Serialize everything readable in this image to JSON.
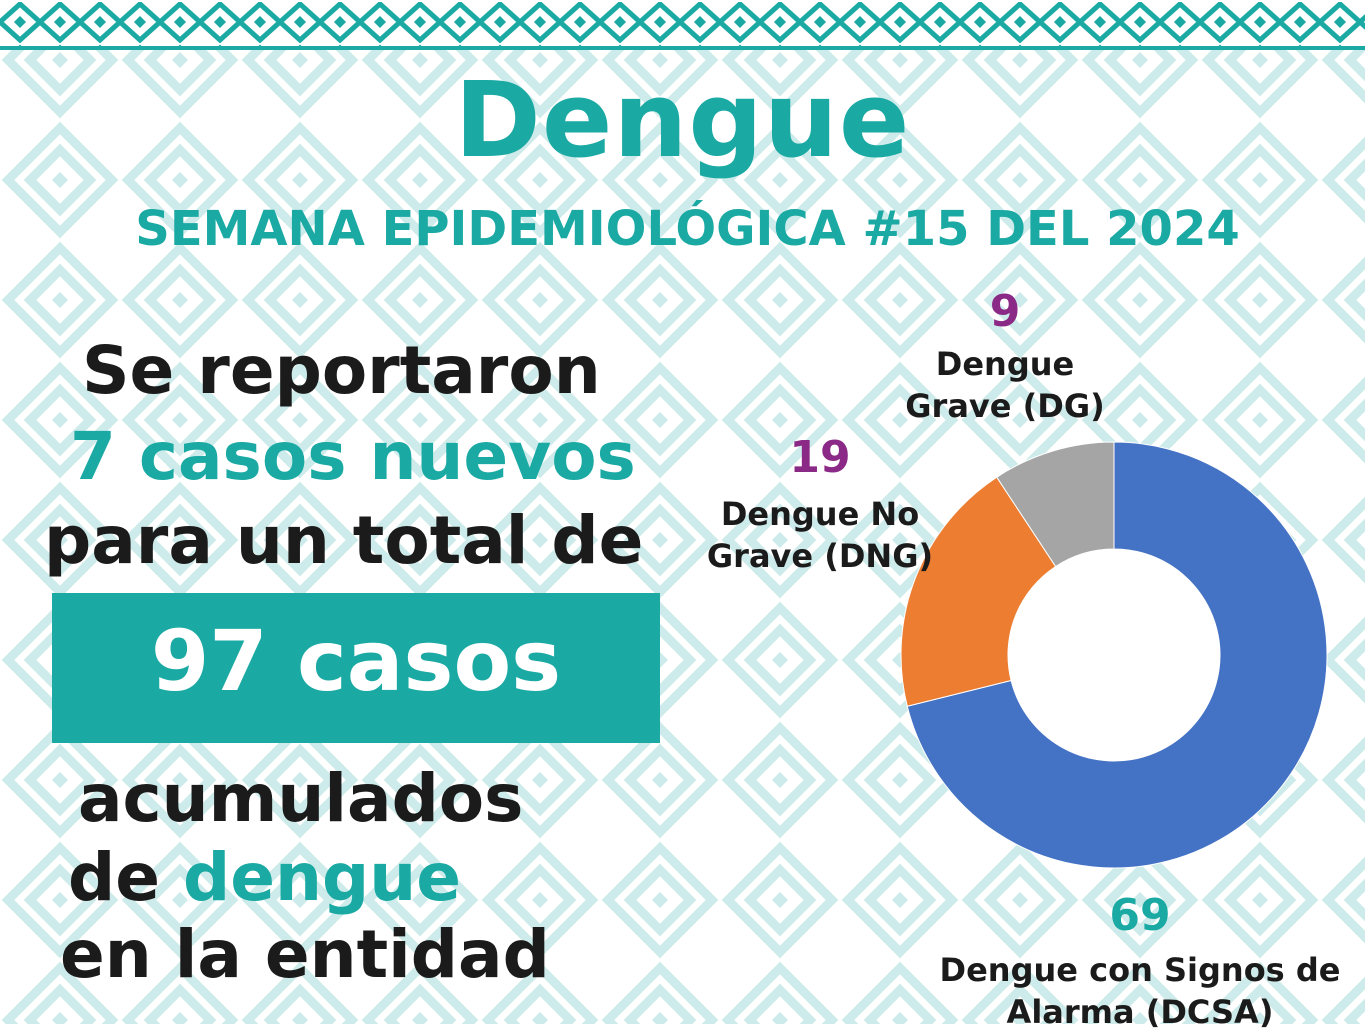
{
  "header": {
    "title": "Dengue",
    "subtitle": "SEMANA EPIDEMIOLÓGICA #15 DEL 2024"
  },
  "summary": {
    "line1": "Se reportaron",
    "line2": "7 casos nuevos",
    "line3": "para un total de",
    "total": "97 casos",
    "line4": "acumulados",
    "line5a": "de ",
    "line5b": "dengue",
    "line6": "en la entidad"
  },
  "colors": {
    "teal": "#1aa9a3",
    "purple": "#8b2a86",
    "dark": "#1b1b1b",
    "dcsa": "#4472c4",
    "dng": "#ed7d31",
    "dg": "#a5a5a5",
    "pattern": "#cdebea"
  },
  "chart_data": {
    "type": "pie",
    "donut": true,
    "title": "",
    "categories": [
      "Dengue con Signos de Alarma (DCSA)",
      "Dengue No Grave (DNG)",
      "Dengue Grave (DG)"
    ],
    "values": [
      69,
      19,
      9
    ],
    "value_labels": [
      "69",
      "19",
      "9"
    ],
    "colors": [
      "#4472c4",
      "#ed7d31",
      "#a5a5a5"
    ],
    "start": "12 o'clock",
    "direction": "clockwise"
  }
}
